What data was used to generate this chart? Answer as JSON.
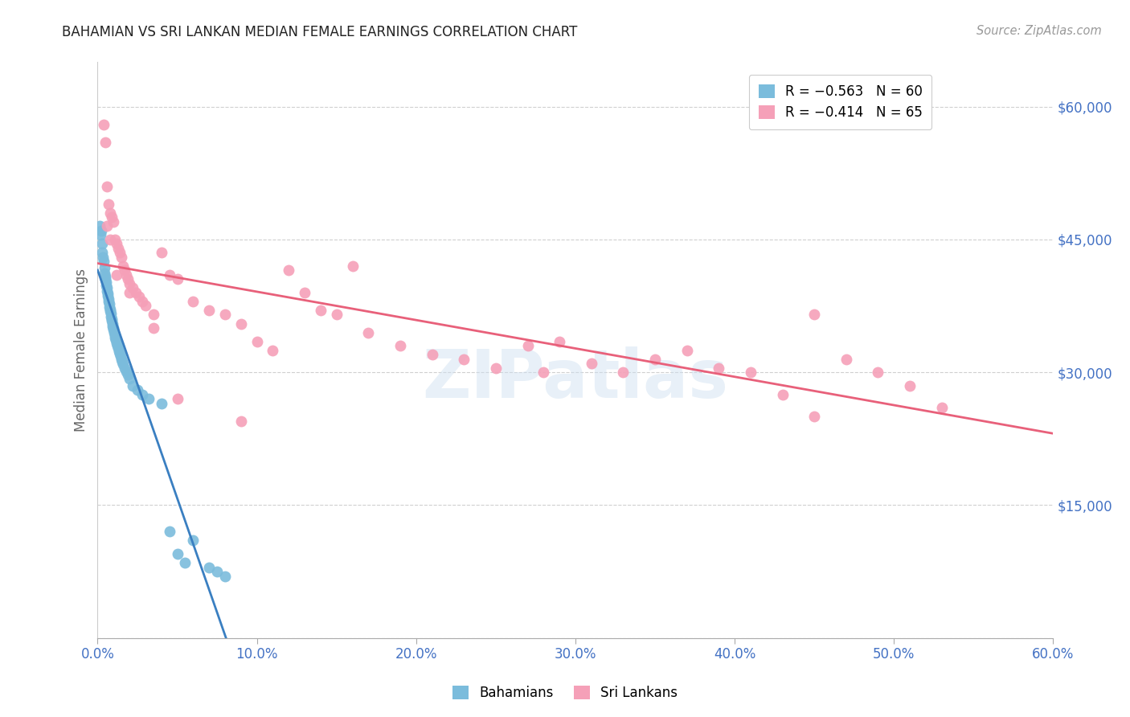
{
  "title": "BAHAMIAN VS SRI LANKAN MEDIAN FEMALE EARNINGS CORRELATION CHART",
  "source": "Source: ZipAtlas.com",
  "ylabel": "Median Female Earnings",
  "xlim": [
    0.0,
    60.0
  ],
  "ylim": [
    0,
    65000
  ],
  "bahamian_color": "#7bbcdc",
  "srilankan_color": "#f5a0b8",
  "bahamian_line_color": "#3a7fc1",
  "srilankan_line_color": "#e8607a",
  "legend_R_bahamian": "R = −0.563",
  "legend_N_bahamian": "N = 60",
  "legend_R_srilankan": "R = −0.414",
  "legend_N_srilankan": "N = 65",
  "watermark": "ZIPatlas",
  "background_color": "#ffffff",
  "grid_color": "#d0d0d0",
  "axis_label_color": "#4472c4",
  "title_color": "#222222",
  "bahamians_x": [
    0.15,
    0.2,
    0.25,
    0.3,
    0.3,
    0.35,
    0.4,
    0.42,
    0.45,
    0.48,
    0.5,
    0.52,
    0.55,
    0.58,
    0.6,
    0.62,
    0.65,
    0.68,
    0.7,
    0.72,
    0.75,
    0.78,
    0.8,
    0.82,
    0.85,
    0.88,
    0.9,
    0.92,
    0.95,
    0.98,
    1.0,
    1.05,
    1.08,
    1.1,
    1.15,
    1.2,
    1.25,
    1.3,
    1.35,
    1.4,
    1.45,
    1.5,
    1.55,
    1.6,
    1.7,
    1.8,
    1.9,
    2.0,
    2.2,
    2.5,
    2.8,
    3.2,
    4.0,
    4.5,
    5.0,
    5.5,
    6.0,
    7.0,
    7.5,
    8.0
  ],
  "bahamians_y": [
    46500,
    45500,
    46000,
    44500,
    43500,
    43000,
    42500,
    41800,
    41200,
    40800,
    40500,
    40200,
    39800,
    39500,
    39200,
    38900,
    38600,
    38300,
    38000,
    37700,
    37400,
    37100,
    36900,
    36600,
    36300,
    36000,
    35800,
    35500,
    35200,
    35000,
    34800,
    34500,
    34200,
    33900,
    33600,
    33300,
    33000,
    32700,
    32400,
    32100,
    31800,
    31500,
    31200,
    30900,
    30500,
    30100,
    29700,
    29300,
    28500,
    28000,
    27500,
    27000,
    26500,
    12000,
    9500,
    8500,
    11000,
    8000,
    7500,
    7000
  ],
  "srilankans_x": [
    0.4,
    0.5,
    0.6,
    0.7,
    0.8,
    0.9,
    1.0,
    1.1,
    1.2,
    1.3,
    1.4,
    1.5,
    1.6,
    1.7,
    1.8,
    1.9,
    2.0,
    2.2,
    2.4,
    2.6,
    2.8,
    3.0,
    3.5,
    4.0,
    4.5,
    5.0,
    6.0,
    7.0,
    8.0,
    9.0,
    10.0,
    11.0,
    12.0,
    13.0,
    14.0,
    15.0,
    17.0,
    19.0,
    21.0,
    23.0,
    25.0,
    27.0,
    29.0,
    31.0,
    33.0,
    35.0,
    37.0,
    39.0,
    41.0,
    43.0,
    45.0,
    47.0,
    49.0,
    51.0,
    53.0,
    0.6,
    0.8,
    1.2,
    2.0,
    3.5,
    5.0,
    9.0,
    16.0,
    28.0,
    45.0
  ],
  "srilankans_y": [
    58000,
    56000,
    51000,
    49000,
    48000,
    47500,
    47000,
    45000,
    44500,
    44000,
    43500,
    43000,
    42000,
    41500,
    41000,
    40500,
    40000,
    39500,
    39000,
    38500,
    38000,
    37500,
    36500,
    43500,
    41000,
    40500,
    38000,
    37000,
    36500,
    35500,
    33500,
    32500,
    41500,
    39000,
    37000,
    36500,
    34500,
    33000,
    32000,
    31500,
    30500,
    33000,
    33500,
    31000,
    30000,
    31500,
    32500,
    30500,
    30000,
    27500,
    36500,
    31500,
    30000,
    28500,
    26000,
    46500,
    45000,
    41000,
    39000,
    35000,
    27000,
    24500,
    42000,
    30000,
    25000
  ]
}
